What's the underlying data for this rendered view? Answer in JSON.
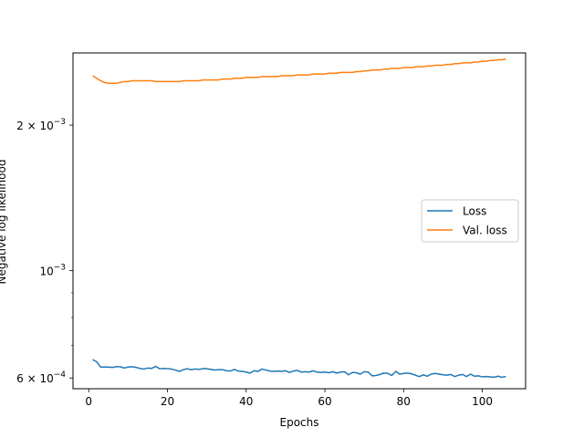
{
  "chart_data": {
    "type": "line",
    "xlabel": "Epochs",
    "ylabel": "Negative log likelihood",
    "xlim": [
      -4,
      111
    ],
    "ylim": [
      0.00057,
      0.00282
    ],
    "yscale": "log",
    "grid": false,
    "legend_position": "center-right",
    "x_ticks": [
      {
        "value": 0,
        "label": "0"
      },
      {
        "value": 20,
        "label": "20"
      },
      {
        "value": 40,
        "label": "40"
      },
      {
        "value": 60,
        "label": "60"
      },
      {
        "value": 80,
        "label": "80"
      },
      {
        "value": 100,
        "label": "100"
      }
    ],
    "y_major_ticks": [
      {
        "value": 0.0006,
        "mantissa": "6 × 10",
        "exponent": "−4"
      },
      {
        "value": 0.001,
        "mantissa": "10",
        "exponent": "−3"
      },
      {
        "value": 0.002,
        "mantissa": "2 × 10",
        "exponent": "−3"
      }
    ],
    "y_minor_ticks": [
      0.0007,
      0.0008,
      0.0009
    ],
    "x": [
      1,
      2,
      3,
      4,
      5,
      6,
      7,
      8,
      9,
      10,
      11,
      12,
      13,
      14,
      15,
      16,
      17,
      18,
      19,
      20,
      21,
      22,
      23,
      24,
      25,
      26,
      27,
      28,
      29,
      30,
      31,
      32,
      33,
      34,
      35,
      36,
      37,
      38,
      39,
      40,
      41,
      42,
      43,
      44,
      45,
      46,
      47,
      48,
      49,
      50,
      51,
      52,
      53,
      54,
      55,
      56,
      57,
      58,
      59,
      60,
      61,
      62,
      63,
      64,
      65,
      66,
      67,
      68,
      69,
      70,
      71,
      72,
      73,
      74,
      75,
      76,
      77,
      78,
      79,
      80,
      81,
      82,
      83,
      84,
      85,
      86,
      87,
      88,
      89,
      90,
      91,
      92,
      93,
      94,
      95,
      96,
      97,
      98,
      99,
      100,
      101,
      102,
      103,
      104,
      105,
      106
    ],
    "series": [
      {
        "name": "Loss",
        "color": "#1f77b4",
        "values": [
          0.000655,
          0.000648,
          0.000632,
          0.000632,
          0.000632,
          0.000631,
          0.000633,
          0.000633,
          0.000629,
          0.000632,
          0.000633,
          0.000631,
          0.000628,
          0.000626,
          0.000629,
          0.000628,
          0.000634,
          0.000627,
          0.000628,
          0.000627,
          0.000626,
          0.000623,
          0.000619,
          0.000624,
          0.000627,
          0.000624,
          0.000626,
          0.000625,
          0.000627,
          0.000627,
          0.000625,
          0.000623,
          0.000624,
          0.000624,
          0.000621,
          0.00062,
          0.000625,
          0.00062,
          0.000619,
          0.000617,
          0.000614,
          0.000621,
          0.000619,
          0.000626,
          0.000623,
          0.00062,
          0.000619,
          0.00062,
          0.000619,
          0.000621,
          0.000616,
          0.00062,
          0.000622,
          0.000617,
          0.000618,
          0.000617,
          0.000621,
          0.000617,
          0.000616,
          0.000617,
          0.000615,
          0.000618,
          0.000614,
          0.000617,
          0.000618,
          0.000609,
          0.000616,
          0.000615,
          0.000611,
          0.000618,
          0.000617,
          0.000606,
          0.000607,
          0.00061,
          0.000614,
          0.000613,
          0.000607,
          0.000619,
          0.000611,
          0.000613,
          0.000614,
          0.000612,
          0.000608,
          0.000604,
          0.000609,
          0.000605,
          0.000611,
          0.000613,
          0.000611,
          0.000609,
          0.000608,
          0.00061,
          0.000604,
          0.000608,
          0.00061,
          0.000604,
          0.000611,
          0.000605,
          0.000606,
          0.000603,
          0.000604,
          0.000603,
          0.000602,
          0.000605,
          0.000602,
          0.000604
        ]
      },
      {
        "name": "Val. loss",
        "color": "#ff7f0e",
        "values": [
          0.00253,
          0.0025,
          0.00247,
          0.00245,
          0.00244,
          0.00244,
          0.00244,
          0.00245,
          0.00246,
          0.00246,
          0.00247,
          0.00247,
          0.00247,
          0.00247,
          0.00247,
          0.00247,
          0.00246,
          0.00246,
          0.00246,
          0.00246,
          0.00246,
          0.00246,
          0.00246,
          0.00247,
          0.00247,
          0.00247,
          0.00247,
          0.00247,
          0.00248,
          0.00248,
          0.00248,
          0.00248,
          0.00248,
          0.00249,
          0.00249,
          0.00249,
          0.0025,
          0.0025,
          0.0025,
          0.00251,
          0.00251,
          0.00251,
          0.00251,
          0.00252,
          0.00252,
          0.00252,
          0.00252,
          0.00252,
          0.00253,
          0.00253,
          0.00253,
          0.00253,
          0.00254,
          0.00254,
          0.00254,
          0.00254,
          0.00255,
          0.00255,
          0.00255,
          0.00255,
          0.00256,
          0.00256,
          0.00256,
          0.00257,
          0.00257,
          0.00257,
          0.00257,
          0.00258,
          0.00258,
          0.00259,
          0.00259,
          0.0026,
          0.0026,
          0.0026,
          0.00261,
          0.00261,
          0.00262,
          0.00262,
          0.00262,
          0.00263,
          0.00263,
          0.00263,
          0.00264,
          0.00264,
          0.00264,
          0.00265,
          0.00265,
          0.00266,
          0.00266,
          0.00266,
          0.00267,
          0.00267,
          0.00268,
          0.00268,
          0.00269,
          0.00269,
          0.00269,
          0.0027,
          0.0027,
          0.00271,
          0.00271,
          0.00272,
          0.00272,
          0.00273,
          0.00273,
          0.00274
        ]
      }
    ]
  }
}
